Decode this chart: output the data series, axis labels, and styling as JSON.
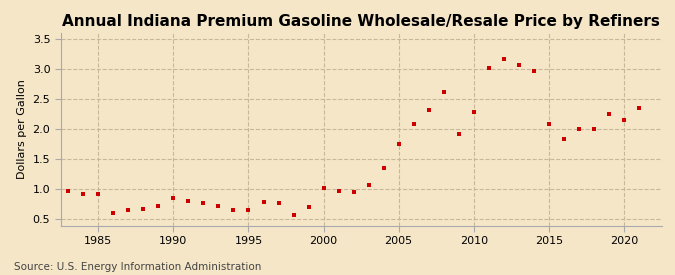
{
  "title": "Annual Indiana Premium Gasoline Wholesale/Resale Price by Refiners",
  "ylabel": "Dollars per Gallon",
  "source": "Source: U.S. Energy Information Administration",
  "background_color": "#f5e6c8",
  "marker_color": "#cc0000",
  "ylim": [
    0.4,
    3.6
  ],
  "yticks": [
    0.5,
    1.0,
    1.5,
    2.0,
    2.5,
    3.0,
    3.5
  ],
  "xlim": [
    1982.5,
    2022.5
  ],
  "xticks": [
    1985,
    1990,
    1995,
    2000,
    2005,
    2010,
    2015,
    2020
  ],
  "years": [
    1983,
    1984,
    1985,
    1986,
    1987,
    1988,
    1989,
    1990,
    1991,
    1992,
    1993,
    1994,
    1995,
    1996,
    1997,
    1998,
    1999,
    2000,
    2001,
    2002,
    2003,
    2004,
    2005,
    2006,
    2007,
    2008,
    2009,
    2010,
    2011,
    2012,
    2013,
    2014,
    2015,
    2016,
    2017,
    2018,
    2019,
    2020,
    2021
  ],
  "values": [
    0.97,
    0.93,
    0.93,
    0.6,
    0.65,
    0.67,
    0.73,
    0.86,
    0.8,
    0.77,
    0.72,
    0.66,
    0.65,
    0.79,
    0.77,
    0.58,
    0.7,
    1.02,
    0.97,
    0.95,
    1.07,
    1.35,
    1.76,
    2.09,
    2.32,
    2.62,
    1.92,
    2.28,
    3.02,
    3.17,
    3.07,
    2.97,
    2.09,
    1.84,
    2.01,
    2.0,
    2.25,
    2.15,
    2.35
  ],
  "grid_color": "#c8b89a",
  "vgrid_years": [
    1985,
    1990,
    1995,
    2000,
    2005,
    2010,
    2015,
    2020
  ],
  "spine_color": "#aaaaaa",
  "title_fontsize": 11,
  "tick_fontsize": 8,
  "ylabel_fontsize": 8,
  "source_fontsize": 7.5,
  "marker_size": 12
}
